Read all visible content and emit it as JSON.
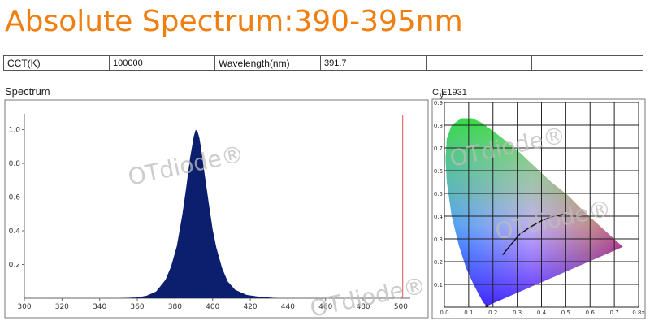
{
  "title": "Absolute Spectrum:390-395nm",
  "info_table": {
    "cct_label": "CCT(K)",
    "cct_value": "100000",
    "wavelength_label": "Wavelength(nm)",
    "wavelength_value": "391.7"
  },
  "watermark": "OTdiode®",
  "chart_data": [
    {
      "type": "area",
      "label": "Spectrum",
      "xlim": [
        300,
        505
      ],
      "ylim": [
        0,
        1.08
      ],
      "x_ticks": [
        300,
        320,
        340,
        360,
        380,
        400,
        420,
        440,
        460,
        480,
        500
      ],
      "y_ticks": [
        0.2,
        0.4,
        0.6,
        0.8,
        1.0
      ],
      "y_tick_labels": [
        "0.2",
        "0.4",
        "0.6",
        "0.8",
        "1.0"
      ],
      "peak_nm": 391.7,
      "x": [
        350,
        360,
        365,
        370,
        375,
        378,
        381,
        384,
        386,
        388,
        390,
        391,
        392,
        393,
        394,
        396,
        398,
        400,
        402,
        405,
        408,
        412,
        418,
        425,
        435
      ],
      "y": [
        0.0,
        0.005,
        0.015,
        0.04,
        0.11,
        0.19,
        0.31,
        0.5,
        0.66,
        0.83,
        0.96,
        1.0,
        0.99,
        0.95,
        0.88,
        0.72,
        0.56,
        0.41,
        0.3,
        0.18,
        0.1,
        0.05,
        0.02,
        0.008,
        0.0
      ],
      "fill_color": "#0c1f6e",
      "marker_line_x": 501,
      "marker_line_color": "#e05050"
    },
    {
      "type": "scatter",
      "label": "CIE1931",
      "xlim": [
        0,
        0.8
      ],
      "ylim": [
        0,
        0.9
      ],
      "x_ticks": [
        0,
        0.1,
        0.2,
        0.3,
        0.4,
        0.5,
        0.6,
        0.7,
        0.8
      ],
      "x_tick_labels": [
        "0.0",
        "0.1",
        "0.2",
        "0.3",
        "0.4",
        "0.5",
        "0.6",
        "0.7",
        "0.8x"
      ],
      "y_ticks": [
        0.1,
        0.2,
        0.3,
        0.4,
        0.5,
        0.6,
        0.7,
        0.8,
        0.9
      ],
      "y_tick_labels": [
        "0.1",
        "0.2",
        "0.3",
        "0.4",
        "0.5",
        "0.6",
        "0.7",
        "0.8",
        "0.9"
      ],
      "y_axis_label": "y",
      "locus_x": [
        0.175,
        0.17,
        0.16,
        0.14,
        0.12,
        0.09,
        0.06,
        0.03,
        0.01,
        0.005,
        0.01,
        0.03,
        0.07,
        0.115,
        0.155,
        0.23,
        0.3,
        0.37,
        0.44,
        0.51,
        0.575,
        0.735
      ],
      "locus_y": [
        0.005,
        0.01,
        0.02,
        0.06,
        0.1,
        0.17,
        0.27,
        0.4,
        0.55,
        0.65,
        0.74,
        0.8,
        0.83,
        0.83,
        0.81,
        0.75,
        0.69,
        0.62,
        0.55,
        0.49,
        0.42,
        0.265
      ],
      "planckian_x": [
        0.24,
        0.27,
        0.31,
        0.35,
        0.4,
        0.45,
        0.5
      ],
      "planckian_y": [
        0.23,
        0.27,
        0.32,
        0.35,
        0.38,
        0.4,
        0.41
      ],
      "point": [
        0.175,
        0.005
      ]
    }
  ]
}
